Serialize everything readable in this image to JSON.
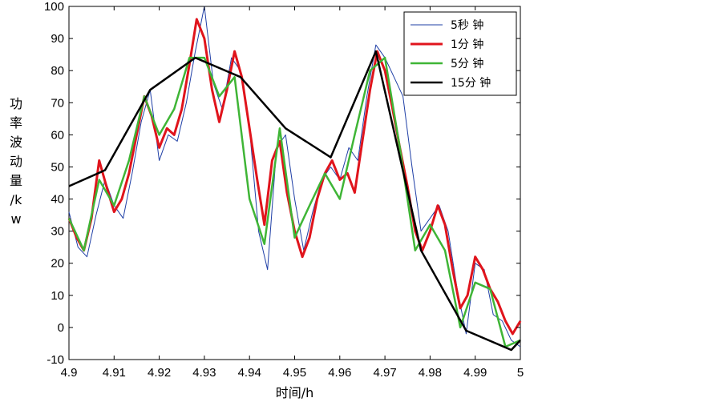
{
  "chart_data": {
    "type": "line",
    "xlabel": "时间/h",
    "ylabel": [
      "功",
      "率",
      "波",
      "动",
      "量",
      "/k",
      "w"
    ],
    "xlim": [
      4.9,
      5.0
    ],
    "ylim": [
      -10,
      100
    ],
    "xticks": [
      "4.9",
      "4.91",
      "4.92",
      "4.93",
      "4.94",
      "4.95",
      "4.96",
      "4.97",
      "4.98",
      "4.99",
      "5"
    ],
    "yticks": [
      "-10",
      "0",
      "10",
      "20",
      "30",
      "40",
      "50",
      "60",
      "70",
      "80",
      "90",
      "100"
    ],
    "grid": false,
    "legend_position": "top-right",
    "series": [
      {
        "name": "5秒 钟",
        "color": "#1f3fa6",
        "x": [
          4.9,
          4.902,
          4.904,
          4.906,
          4.908,
          4.91,
          4.912,
          4.914,
          4.916,
          4.918,
          4.92,
          4.922,
          4.924,
          4.926,
          4.928,
          4.93,
          4.932,
          4.934,
          4.936,
          4.938,
          4.94,
          4.942,
          4.944,
          4.946,
          4.948,
          4.95,
          4.952,
          4.954,
          4.956,
          4.958,
          4.96,
          4.962,
          4.964,
          4.966,
          4.968,
          4.97,
          4.972,
          4.974,
          4.976,
          4.978,
          4.98,
          4.982,
          4.984,
          4.986,
          4.988,
          4.99,
          4.992,
          4.994,
          4.996,
          4.998,
          5.0
        ],
        "values": [
          36,
          25,
          22,
          35,
          46,
          38,
          34,
          48,
          64,
          74,
          52,
          60,
          58,
          70,
          86,
          100,
          76,
          68,
          84,
          80,
          62,
          30,
          18,
          56,
          60,
          40,
          24,
          36,
          46,
          50,
          46,
          56,
          52,
          72,
          88,
          84,
          78,
          72,
          50,
          30,
          34,
          38,
          30,
          12,
          -2,
          20,
          18,
          4,
          2,
          -4,
          -6
        ]
      },
      {
        "name": "1分 钟",
        "color": "#e0141c",
        "x": [
          4.9,
          4.9017,
          4.9033,
          4.905,
          4.9067,
          4.9083,
          4.91,
          4.9117,
          4.9133,
          4.915,
          4.9167,
          4.9183,
          4.92,
          4.9217,
          4.9233,
          4.925,
          4.9267,
          4.9283,
          4.93,
          4.9317,
          4.9333,
          4.935,
          4.9367,
          4.9383,
          4.94,
          4.9417,
          4.9433,
          4.945,
          4.9467,
          4.9483,
          4.95,
          4.9517,
          4.9533,
          4.955,
          4.9567,
          4.9583,
          4.96,
          4.9617,
          4.9633,
          4.965,
          4.9667,
          4.9683,
          4.97,
          4.9717,
          4.9733,
          4.975,
          4.9767,
          4.9783,
          4.98,
          4.9817,
          4.9833,
          4.985,
          4.9867,
          4.9883,
          4.99,
          4.9917,
          4.9933,
          4.995,
          4.9967,
          4.9983,
          5.0
        ],
        "values": [
          34,
          28,
          24,
          34,
          52,
          44,
          36,
          40,
          48,
          60,
          72,
          66,
          56,
          62,
          60,
          68,
          82,
          96,
          90,
          74,
          64,
          74,
          86,
          78,
          62,
          46,
          32,
          52,
          58,
          42,
          30,
          22,
          28,
          40,
          48,
          52,
          46,
          48,
          42,
          58,
          74,
          86,
          80,
          68,
          56,
          44,
          30,
          24,
          30,
          38,
          32,
          18,
          6,
          10,
          22,
          18,
          12,
          8,
          2,
          -2,
          2
        ]
      },
      {
        "name": "5分 钟",
        "color": "#3fb536",
        "x": [
          4.9,
          4.9033,
          4.9067,
          4.91,
          4.9133,
          4.9167,
          4.92,
          4.9233,
          4.9267,
          4.93,
          4.9333,
          4.9367,
          4.94,
          4.9433,
          4.9467,
          4.95,
          4.9533,
          4.9567,
          4.96,
          4.9633,
          4.9667,
          4.97,
          4.9733,
          4.9767,
          4.98,
          4.9833,
          4.9867,
          4.99,
          4.9933,
          4.9967,
          5.0
        ],
        "values": [
          34,
          24,
          46,
          38,
          52,
          72,
          60,
          68,
          84,
          84,
          72,
          78,
          40,
          26,
          62,
          28,
          38,
          48,
          40,
          60,
          80,
          84,
          56,
          24,
          32,
          24,
          0,
          14,
          12,
          -6,
          -4
        ]
      },
      {
        "name": "15分 钟",
        "color": "#000000",
        "x": [
          4.9,
          4.908,
          4.918,
          4.928,
          4.938,
          4.948,
          4.958,
          4.968,
          4.978,
          4.988,
          4.998,
          5.0
        ],
        "values": [
          44,
          49,
          74,
          84,
          78,
          62,
          53,
          86,
          24,
          -1,
          -7,
          -4
        ]
      }
    ]
  }
}
